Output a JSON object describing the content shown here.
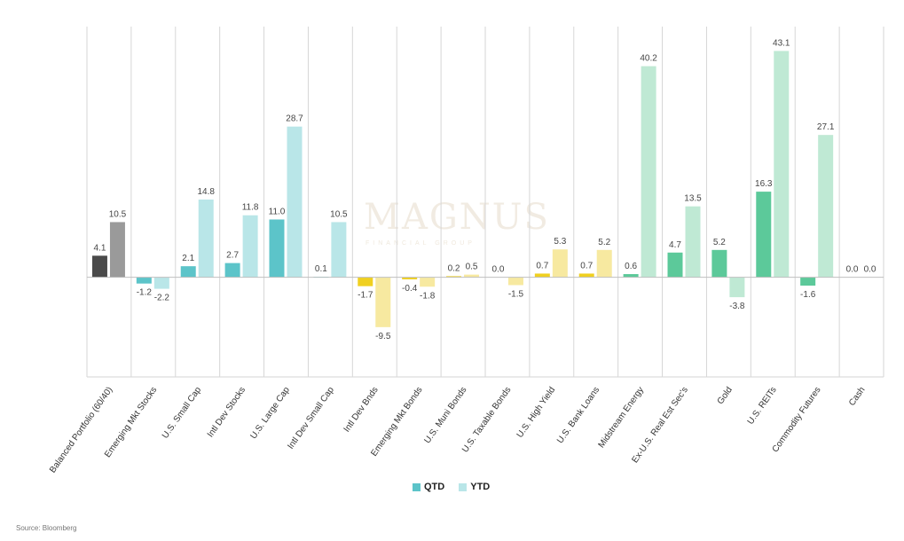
{
  "chart_data": {
    "type": "bar",
    "categories": [
      "Balanced Portfolio (60/40)",
      "Emerging Mkt Stocks",
      "U.S. Small Cap",
      "Intl Dev Stocks",
      "U.S. Large Cap",
      "Intl Dev Small Cap",
      "Intl Dev Bnds",
      "Emerging Mkt Bonds",
      "U.S. Muni Bonds",
      "U.S. Taxable Bonds",
      "U.S. High Yield",
      "U.S. Bank Loans",
      "Midstream Energy",
      "Ex-U.S. Real Est Sec's",
      "Gold",
      "U.S. REITs",
      "Commodity Futures",
      "Cash"
    ],
    "series": [
      {
        "name": "QTD",
        "values": [
          4.1,
          -1.2,
          2.1,
          2.7,
          11.0,
          0.1,
          -1.7,
          -0.4,
          0.2,
          0.0,
          0.7,
          0.7,
          0.6,
          4.7,
          5.2,
          16.3,
          -1.6,
          0.0
        ]
      },
      {
        "name": "YTD",
        "values": [
          10.5,
          -2.2,
          14.8,
          11.8,
          28.7,
          10.5,
          -9.5,
          -1.8,
          0.5,
          -1.5,
          5.3,
          5.2,
          40.2,
          13.5,
          -3.8,
          43.1,
          27.1,
          0.0
        ]
      }
    ],
    "group_colors": [
      {
        "qtd": "#4a4a4a",
        "ytd": "#9a9a9a"
      },
      {
        "qtd": "#5cc4c9",
        "ytd": "#b9e6e8"
      },
      {
        "qtd": "#5cc4c9",
        "ytd": "#b9e6e8"
      },
      {
        "qtd": "#5cc4c9",
        "ytd": "#b9e6e8"
      },
      {
        "qtd": "#5cc4c9",
        "ytd": "#b9e6e8"
      },
      {
        "qtd": "#5cc4c9",
        "ytd": "#b9e6e8"
      },
      {
        "qtd": "#f0d020",
        "ytd": "#f7e9a0"
      },
      {
        "qtd": "#f0d020",
        "ytd": "#f7e9a0"
      },
      {
        "qtd": "#f0d020",
        "ytd": "#f7e9a0"
      },
      {
        "qtd": "#f0d020",
        "ytd": "#f7e9a0"
      },
      {
        "qtd": "#f0d020",
        "ytd": "#f7e9a0"
      },
      {
        "qtd": "#f0d020",
        "ytd": "#f7e9a0"
      },
      {
        "qtd": "#5cc99a",
        "ytd": "#bfe9d4"
      },
      {
        "qtd": "#5cc99a",
        "ytd": "#bfe9d4"
      },
      {
        "qtd": "#5cc99a",
        "ytd": "#bfe9d4"
      },
      {
        "qtd": "#5cc99a",
        "ytd": "#bfe9d4"
      },
      {
        "qtd": "#5cc99a",
        "ytd": "#bfe9d4"
      },
      {
        "qtd": "#5cc99a",
        "ytd": "#bfe9d4"
      }
    ],
    "data_labels": {
      "qtd": [
        "4.1",
        "-1.2",
        "2.1",
        "2.7",
        "11.0",
        "0.1",
        "-1.7",
        "-0.4",
        "0.2",
        "0.0",
        "0.7",
        "0.7",
        "0.6",
        "4.7",
        "5.2",
        "16.3",
        "-1.6",
        "0.0"
      ],
      "ytd": [
        "10.5",
        "-2.2",
        "14.8",
        "11.8",
        "28.7",
        "10.5",
        "-9.5",
        "-1.8",
        "0.5",
        "-1.5",
        "5.3",
        "5.2",
        "40.2",
        "13.5",
        "-3.8",
        "43.1",
        "27.1",
        "0.0"
      ]
    },
    "ylim": [
      -20,
      50
    ],
    "grid": "vertical separators between categories",
    "legend_placement": "bottom-center"
  },
  "legend": {
    "qtd_label": "QTD",
    "ytd_label": "YTD",
    "qtd_color": "#5cc4c9",
    "ytd_color": "#b9e6e8"
  },
  "watermark": {
    "title": "MAGNUS",
    "subtitle": "FINANCIAL GROUP"
  },
  "source": "Source: Bloomberg"
}
